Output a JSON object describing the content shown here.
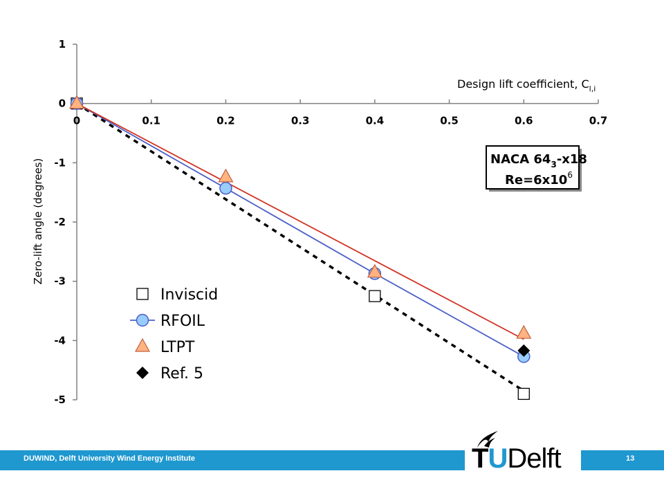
{
  "chart_data": {
    "type": "line",
    "xlabel": "Design lift coefficient, C",
    "xlabel_sub": "l,i",
    "ylabel": "Zero-lift angle (degrees)",
    "xlim": [
      0,
      0.7
    ],
    "ylim": [
      -5,
      1
    ],
    "x_ticks": [
      "0",
      "0.1",
      "0.2",
      "0.3",
      "0.4",
      "0.5",
      "0.6",
      "0.7"
    ],
    "y_ticks": [
      "1",
      "0",
      "-1",
      "-2",
      "-3",
      "-4",
      "-5"
    ],
    "x_axis_at_y": 0,
    "grid": false,
    "legend_position": "bottom-left",
    "series": [
      {
        "name": "Inviscid",
        "marker": "square",
        "color": "#000000",
        "points": [
          [
            0,
            0
          ],
          [
            0.4,
            -3.25
          ],
          [
            0.6,
            -4.9
          ]
        ]
      },
      {
        "name": "RFOIL",
        "marker": "circle",
        "color": "#4a5fc8",
        "fill": "#99ccff",
        "points": [
          [
            0,
            0
          ],
          [
            0.2,
            -1.43
          ],
          [
            0.4,
            -2.87
          ],
          [
            0.6,
            -4.27
          ]
        ]
      },
      {
        "name": "LTPT",
        "marker": "triangle",
        "color": "#d03020",
        "fill": "#ffb380",
        "points": [
          [
            0,
            0
          ],
          [
            0.2,
            -1.24
          ],
          [
            0.4,
            -2.85
          ],
          [
            0.6,
            -3.88
          ]
        ]
      },
      {
        "name": "Ref. 5",
        "marker": "diamond",
        "color": "#000000",
        "points": [
          [
            0.6,
            -4.17
          ]
        ]
      }
    ],
    "annotation": {
      "line1_prefix": "NACA 64",
      "line1_sub": "3",
      "line1_suffix": "-x18",
      "line2_prefix": "Re=6x10",
      "line2_sup": "6"
    }
  },
  "footer": {
    "institute": "DUWIND, Delft University Wind Energy Institute",
    "page": "13",
    "logo_tu": "T",
    "logo_u": "U",
    "logo_rest": "Delft"
  },
  "colors": {
    "accent": "#1f98d0"
  }
}
